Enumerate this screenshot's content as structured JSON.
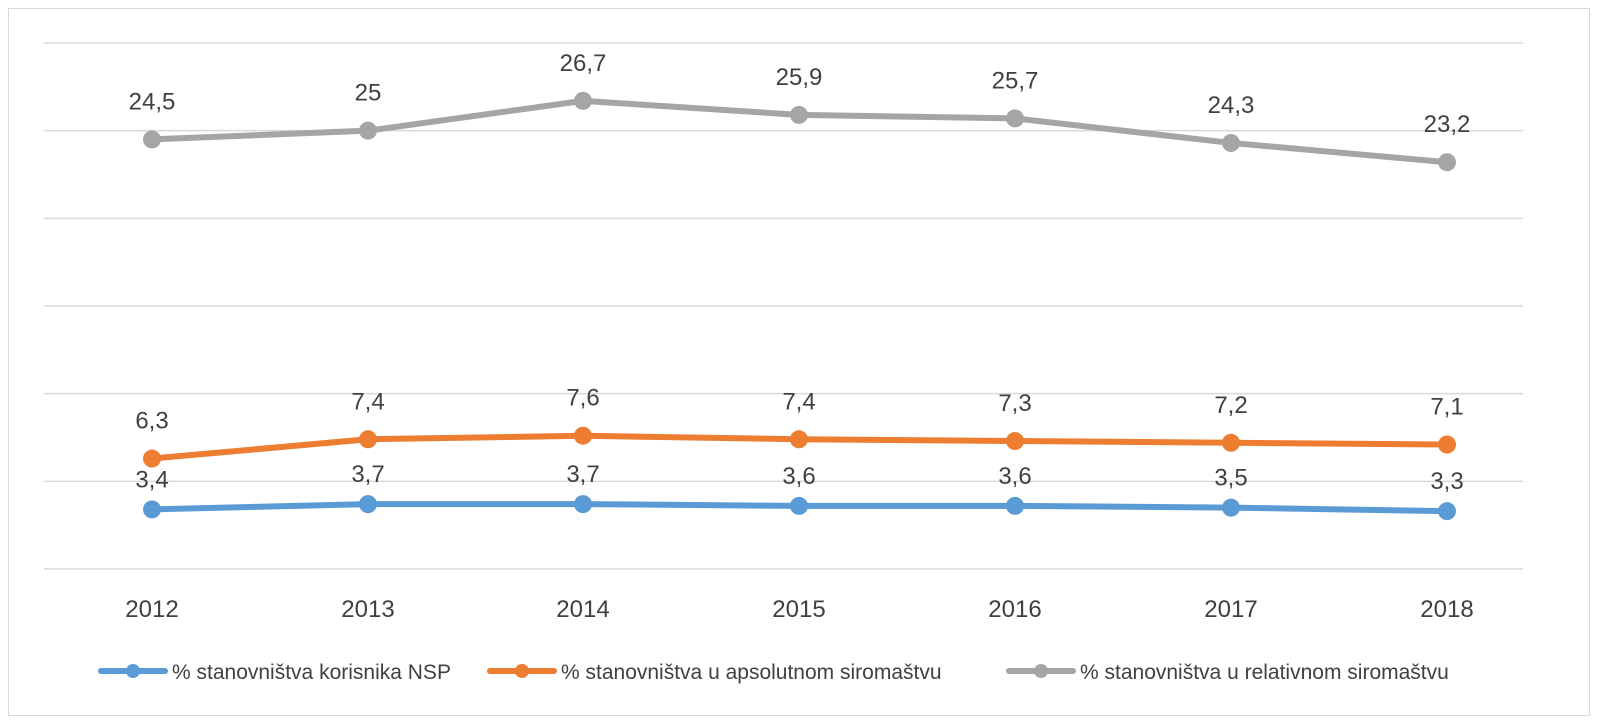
{
  "chart_data": {
    "type": "line",
    "categories": [
      "2012",
      "2013",
      "2014",
      "2015",
      "2016",
      "2017",
      "2018"
    ],
    "series": [
      {
        "name": "% stanovništva korisnika NSP",
        "color": "#5b9bd5",
        "values": [
          3.4,
          3.7,
          3.7,
          3.6,
          3.6,
          3.5,
          3.3
        ],
        "labels": [
          "3,4",
          "3,7",
          "3,7",
          "3,6",
          "3,6",
          "3,5",
          "3,3"
        ]
      },
      {
        "name": "% stanovništva u apsolutnom siromaštvu",
        "color": "#ed7d31",
        "values": [
          6.3,
          7.4,
          7.6,
          7.4,
          7.3,
          7.2,
          7.1
        ],
        "labels": [
          "6,3",
          "7,4",
          "7,6",
          "7,4",
          "7,3",
          "7,2",
          "7,1"
        ]
      },
      {
        "name": "% stanovništva u relativnom siromaštvu",
        "color": "#a5a5a5",
        "values": [
          24.5,
          25,
          26.7,
          25.9,
          25.7,
          24.3,
          23.2
        ],
        "labels": [
          "24,5",
          "25",
          "26,7",
          "25,9",
          "25,7",
          "24,3",
          "23,2"
        ]
      }
    ],
    "ylim": [
      0,
      30
    ],
    "grid": true,
    "legend": "bottom",
    "title": "",
    "xlabel": "",
    "ylabel": ""
  }
}
